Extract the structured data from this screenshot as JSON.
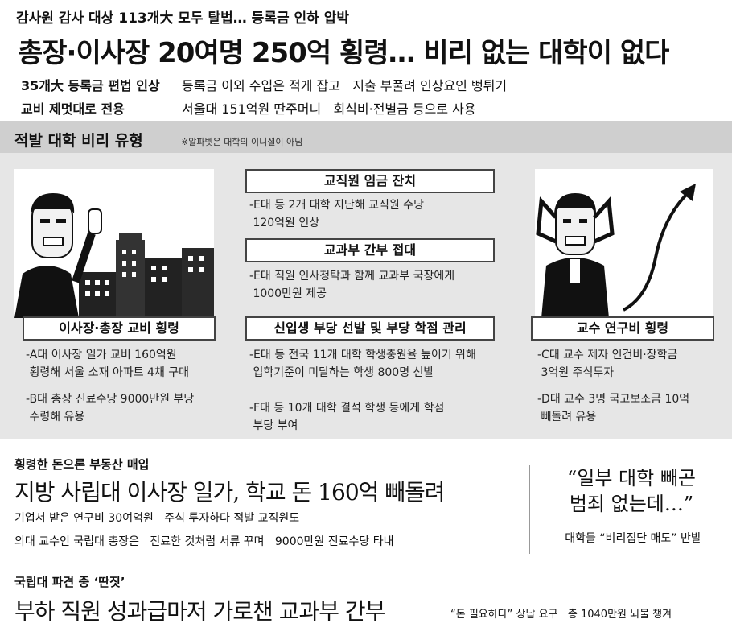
{
  "top": {
    "kicker": "감사원 감사 대상 113개大 모두 탈법… 등록금 인하 압박",
    "headline": "총장·이사장 20여명 250억 횡령… 비리 없는 대학이 없다",
    "sub": [
      {
        "bold": "35개大 등록금 편법 인상",
        "text": "등록금 이외 수입은 적게 잡고   지출 부풀려 인상요인 뻥튀기"
      },
      {
        "bold": "교비 제멋대로 전용",
        "text": "서울대 151억원 딴주머니   회식비·전별금 등으로 사용"
      }
    ]
  },
  "panel": {
    "title": "적발 대학 비리 유형",
    "note": "※알파벳은 대학의 이니셜이 아님",
    "left": {
      "label": "이사장·총장 교비 횡령",
      "items": [
        "-A대 이사장 일가 교비 160억원\n 횡령해 서울 소재 아파트 4채 구매",
        "-B대 총장 진료수당 9000만원 부당\n 수령해 유용"
      ]
    },
    "center": [
      {
        "label": "교직원 임금 잔치",
        "text": "-E대 등 2개 대학 지난해 교직원 수당\n 120억원 인상"
      },
      {
        "label": "교과부 간부 접대",
        "text": "-E대 직원 인사청탁과 함께 교과부 국장에게\n 1000만원 제공"
      },
      {
        "label": "신입생 부당 선발 및 부당 학점 관리",
        "text": "-E대 등 전국 11개 대학 학생충원율 높이기 위해\n 입학기준이 미달하는 학생 800명 선발\n\n-F대 등 10개 대학 결석 학생 등에게 학점\n 부당 부여"
      }
    ],
    "right": {
      "label": "교수 연구비 횡령",
      "items": [
        "-C대 교수 제자 인건비·장학금\n 3억원 주식투자",
        "-D대 교수 3명 국고보조금 10억\n 빼돌려 유용"
      ]
    }
  },
  "section1": {
    "kicker": "횡령한 돈으론 부동산 매입",
    "headline": "지방 사립대 이사장 일가, 학교 돈 160억 빼돌려",
    "line1": "기업서 받은 연구비 30여억원   주식 투자하다 적발 교직원도",
    "line2": "의대 교수인 국립대 총장은   진료한 것처럼 서류 꾸며   9000만원 진료수당 타내"
  },
  "quote": {
    "text": "“일부 대학 빼곤\n범죄 없는데…”",
    "caption": "대학들 “비리집단 매도” 반발"
  },
  "section2": {
    "kicker": "국립대 파견 중 ‘딴짓’",
    "headline": "부하 직원 성과급마저 가로챈 교과부 간부",
    "tail": "“돈 필요하다” 상납 요구   총 1040만원 뇌물 챙겨"
  }
}
